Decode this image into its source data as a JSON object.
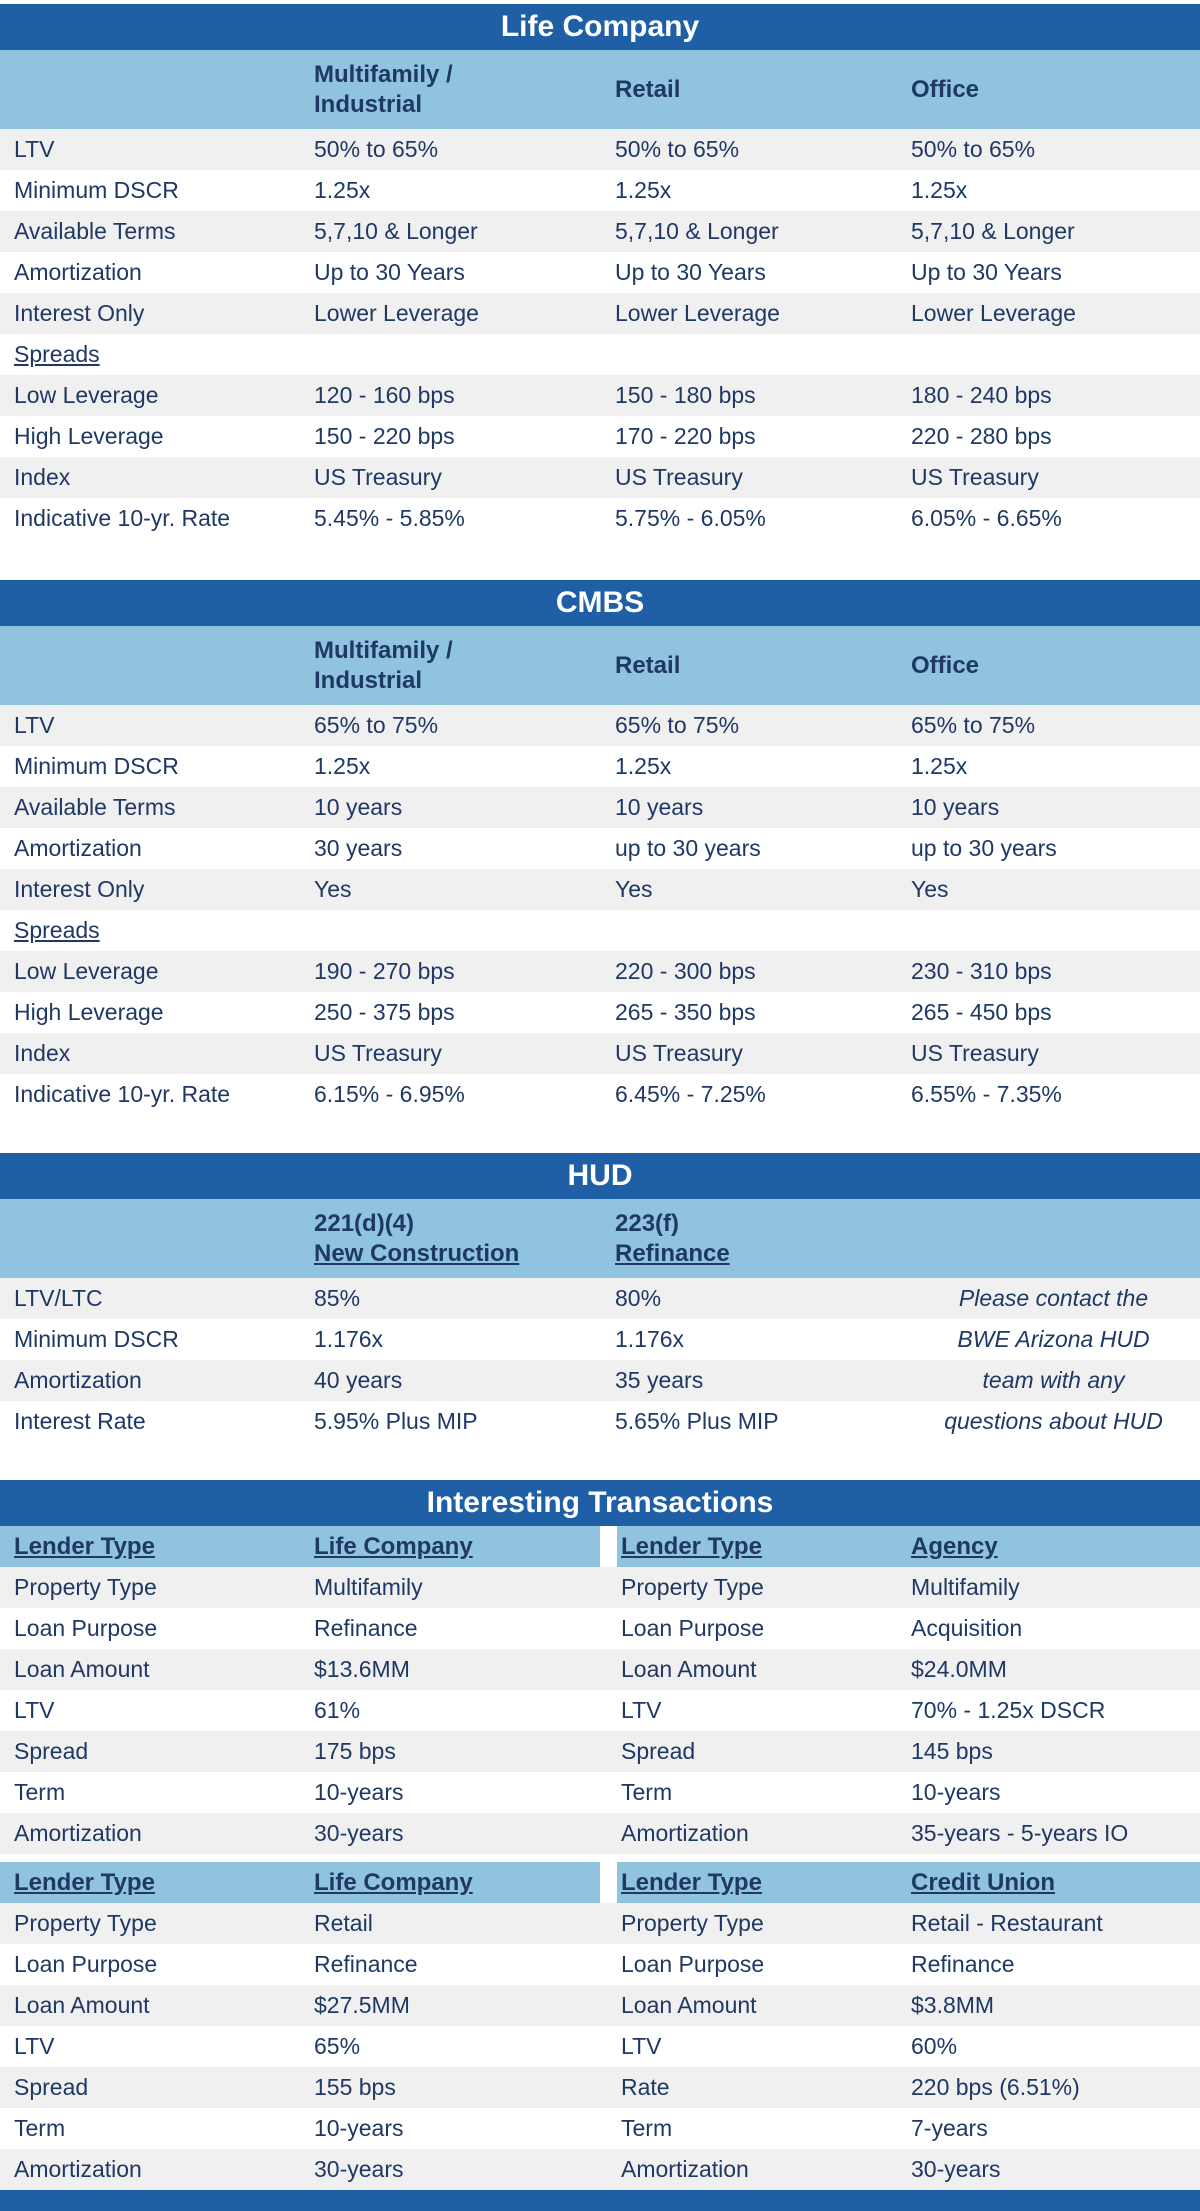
{
  "colors": {
    "title_bar": "#1E5FA6",
    "subheader": "#8FC3DE",
    "alt_row": "#F0F0F0",
    "text": "#1F3864"
  },
  "life_company": {
    "title": "Life Company",
    "columns": [
      "Multifamily /\nIndustrial",
      "Retail",
      "Office"
    ],
    "rows": [
      [
        "LTV",
        "50% to 65%",
        "50% to 65%",
        "50% to 65%"
      ],
      [
        "Minimum DSCR",
        "1.25x",
        "1.25x",
        "1.25x"
      ],
      [
        "Available Terms",
        "5,7,10 & Longer",
        "5,7,10 & Longer",
        "5,7,10 & Longer"
      ],
      [
        "Amortization",
        "Up to 30 Years",
        "Up to 30 Years",
        "Up to 30 Years"
      ],
      [
        "Interest Only",
        "Lower Leverage",
        "Lower Leverage",
        "Lower Leverage"
      ],
      [
        {
          "text": "Spreads",
          "style": "underline"
        },
        "",
        "",
        ""
      ],
      [
        "Low Leverage",
        "120 - 160 bps",
        "150 - 180 bps",
        "180 - 240 bps"
      ],
      [
        "High Leverage",
        "150 - 220 bps",
        "170 - 220 bps",
        "220 - 280 bps"
      ],
      [
        "Index",
        "US Treasury",
        "US Treasury",
        "US Treasury"
      ],
      [
        "Indicative 10-yr. Rate",
        "5.45% - 5.85%",
        "5.75% - 6.05%",
        "6.05% - 6.65%"
      ]
    ]
  },
  "cmbs": {
    "title": "CMBS",
    "columns": [
      "Multifamily /\nIndustrial",
      "Retail",
      "Office"
    ],
    "rows": [
      [
        "LTV",
        "65% to 75%",
        "65% to 75%",
        "65% to 75%"
      ],
      [
        "Minimum DSCR",
        "1.25x",
        "1.25x",
        "1.25x"
      ],
      [
        "Available Terms",
        "10 years",
        "10 years",
        "10 years"
      ],
      [
        "Amortization",
        "30 years",
        "up to 30 years",
        "up to 30 years"
      ],
      [
        "Interest Only",
        "Yes",
        "Yes",
        "Yes"
      ],
      [
        {
          "text": "Spreads",
          "style": "underline"
        },
        "",
        "",
        ""
      ],
      [
        "Low Leverage",
        "190 - 270 bps",
        "220 - 300 bps",
        "230 - 310 bps"
      ],
      [
        "High Leverage",
        "250 - 375 bps",
        "265 - 350 bps",
        "265 - 450 bps"
      ],
      [
        "Index",
        "US Treasury",
        "US Treasury",
        "US Treasury"
      ],
      [
        "Indicative 10-yr. Rate",
        "6.15% - 6.95%",
        "6.45% - 7.25%",
        "6.55% - 7.35%"
      ]
    ]
  },
  "hud": {
    "title": "HUD",
    "columns": [
      {
        "line1": "221(d)(4)",
        "line2": "New Construction"
      },
      {
        "line1": "223(f)",
        "line2": "Refinance"
      }
    ],
    "rows": [
      [
        "LTV/LTC",
        "85%",
        "80%",
        {
          "text": "Please contact the",
          "style": "italic-note"
        }
      ],
      [
        "Minimum DSCR",
        "1.176x",
        "1.176x",
        {
          "text": "BWE Arizona HUD",
          "style": "italic-note"
        }
      ],
      [
        "Amortization",
        "40 years",
        "35 years",
        {
          "text": "team with any",
          "style": "italic-note"
        }
      ],
      [
        "Interest Rate",
        "5.95% Plus MIP",
        "5.65% Plus MIP",
        {
          "text": "questions about HUD",
          "style": "italic-note"
        }
      ]
    ]
  },
  "transactions": {
    "title": "Interesting Transactions",
    "block1": {
      "header": [
        "Lender Type",
        "Life Company",
        "Lender Type",
        "Agency"
      ],
      "rows": [
        [
          "Property Type",
          "Multifamily",
          "Property Type",
          "Multifamily"
        ],
        [
          "Loan Purpose",
          "Refinance",
          "Loan Purpose",
          "Acquisition"
        ],
        [
          "Loan Amount",
          "$13.6MM",
          "Loan Amount",
          "$24.0MM"
        ],
        [
          "LTV",
          "61%",
          "LTV",
          "70% - 1.25x DSCR"
        ],
        [
          "Spread",
          "175 bps",
          "Spread",
          "145 bps"
        ],
        [
          "Term",
          "10-years",
          "Term",
          "10-years"
        ],
        [
          "Amortization",
          "30-years",
          "Amortization",
          "35-years - 5-years IO"
        ]
      ]
    },
    "block2": {
      "header": [
        "Lender Type",
        "Life Company",
        "Lender Type",
        "Credit Union"
      ],
      "rows": [
        [
          "Property Type",
          "Retail",
          "Property Type",
          "Retail - Restaurant"
        ],
        [
          "Loan Purpose",
          "Refinance",
          "Loan Purpose",
          "Refinance"
        ],
        [
          "Loan Amount",
          "$27.5MM",
          "Loan Amount",
          "$3.8MM"
        ],
        [
          "LTV",
          "65%",
          "LTV",
          "60%"
        ],
        [
          "Spread",
          "155 bps",
          "Rate",
          "220 bps (6.51%)"
        ],
        [
          "Term",
          "10-years",
          "Term",
          "7-years"
        ],
        [
          "Amortization",
          "30-years",
          "Amortization",
          "30-years"
        ]
      ]
    }
  }
}
